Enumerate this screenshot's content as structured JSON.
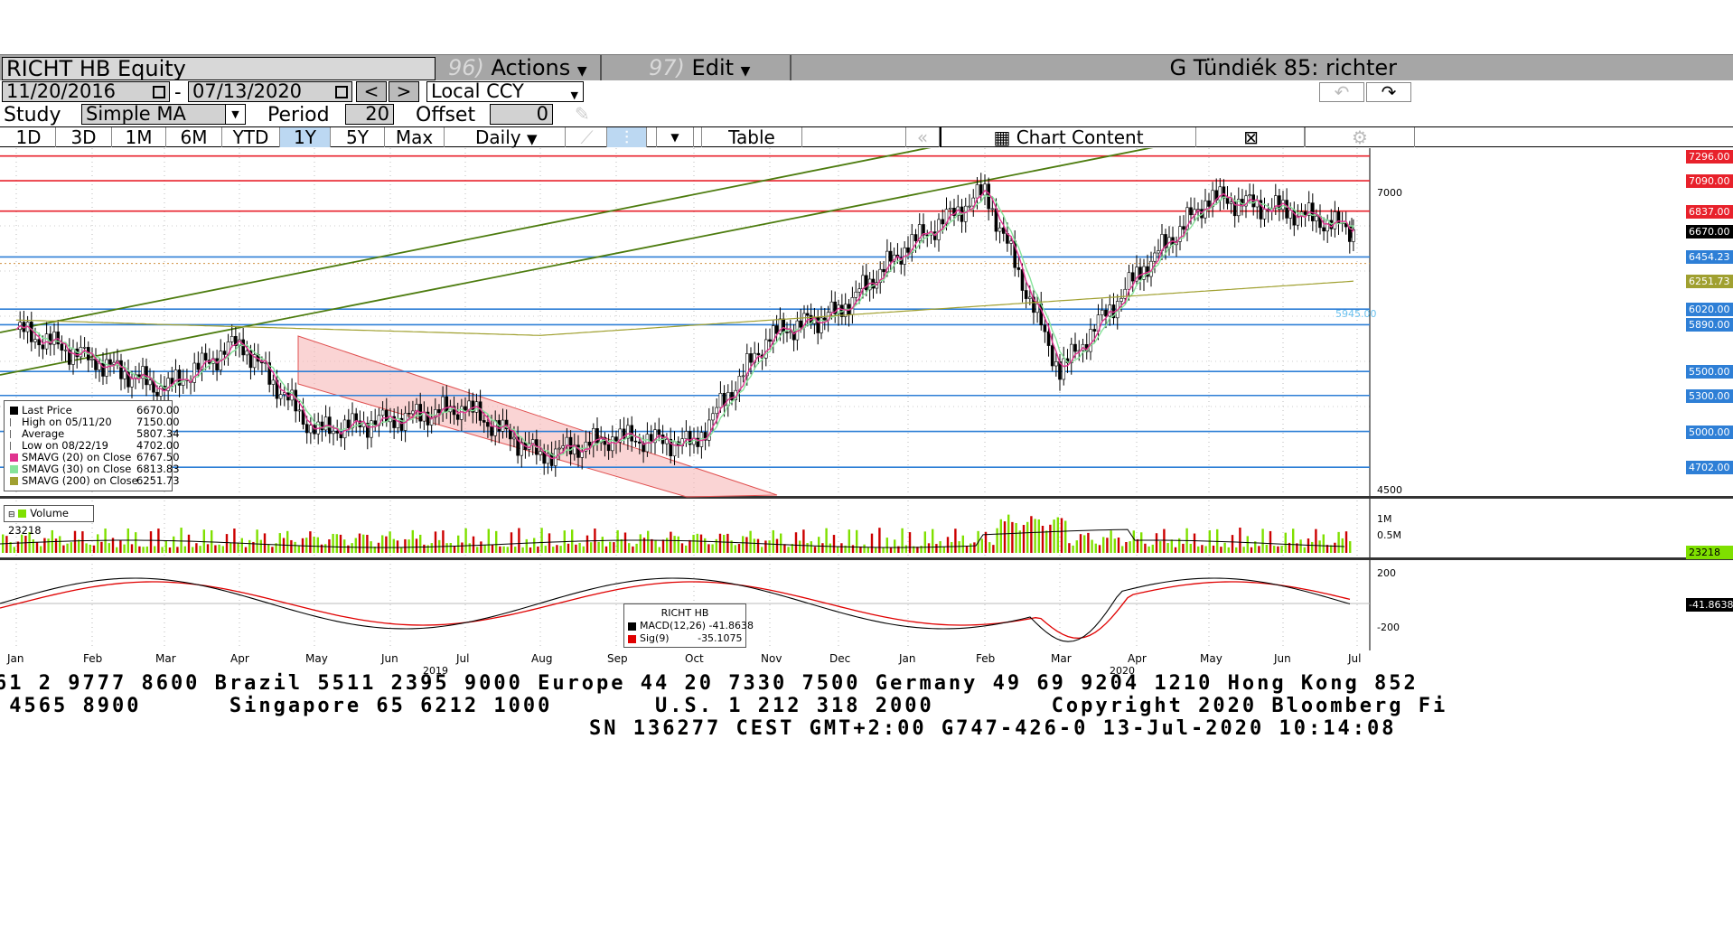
{
  "header": {
    "security": "RICHT HB Equity",
    "actions_num": "96)",
    "actions_label": "Actions",
    "edit_num": "97)",
    "edit_label": "Edit",
    "title": "G Tündiék 85: richter"
  },
  "range": {
    "start": "11/20/2016",
    "dash": "-",
    "end": "07/13/2020",
    "prev": "<",
    "next": ">",
    "currency": "Local CCY"
  },
  "study": {
    "label": "Study",
    "value": "Simple MA",
    "period_label": "Period",
    "period": "20",
    "offset_label": "Offset",
    "offset": "0"
  },
  "periods": [
    "1D",
    "3D",
    "1M",
    "6M",
    "YTD",
    "1Y",
    "5Y",
    "Max"
  ],
  "active_period": "1Y",
  "frequency": "Daily",
  "table_label": "Table",
  "chart_content_label": "Chart Content",
  "colors": {
    "toolbar_gray": "#a6a6a6",
    "resistance_red": "#e8212b",
    "support_blue": "#2e7fd6",
    "trend_green": "#4d7c0f",
    "channel_fill": "#f7b8b8",
    "sma20": "#e0338f",
    "sma30": "#86e39a",
    "sma200": "#a0a030",
    "volume_up": "#7fe000",
    "volume_down": "#cc0000",
    "macd": "#000000",
    "signal": "#e00000"
  },
  "price_tags": [
    {
      "value": "7296.00",
      "color": "#e8212b"
    },
    {
      "value": "7090.00",
      "color": "#e8212b"
    },
    {
      "value": "6837.00",
      "color": "#e8212b"
    },
    {
      "value": "6670.00",
      "color": "#000000"
    },
    {
      "value": "6454.23",
      "color": "#2e7fd6"
    },
    {
      "value": "6251.73",
      "color": "#a0a030"
    },
    {
      "value": "6020.00",
      "color": "#2e7fd6"
    },
    {
      "value": "5890.00",
      "color": "#2e7fd6"
    },
    {
      "value": "5500.00",
      "color": "#2e7fd6"
    },
    {
      "value": "5300.00",
      "color": "#2e7fd6"
    },
    {
      "value": "5000.00",
      "color": "#2e7fd6"
    },
    {
      "value": "4702.00",
      "color": "#2e7fd6"
    }
  ],
  "price_axis": [
    "7000",
    "4500"
  ],
  "inline_label": "5945.00",
  "legend": [
    {
      "label": "Last Price",
      "value": "6670.00",
      "marker": "#000000"
    },
    {
      "label": "High on 05/11/20",
      "value": "7150.00",
      "marker": "none"
    },
    {
      "label": "Average",
      "value": "5807.34",
      "marker": "none"
    },
    {
      "label": "Low on 08/22/19",
      "value": "4702.00",
      "marker": "none"
    },
    {
      "label": "SMAVG (20)  on Close",
      "value": "6767.50",
      "marker": "#e0338f"
    },
    {
      "label": "SMAVG (30)  on Close",
      "value": "6813.83",
      "marker": "#86e39a"
    },
    {
      "label": "SMAVG (200)  on Close",
      "value": "6251.73",
      "marker": "#a0a030"
    }
  ],
  "volume": {
    "label": "Volume 23218",
    "axis": [
      "1M",
      "0.5M"
    ],
    "tag": "23218"
  },
  "macd": {
    "title": "RICHT HB",
    "macd_label": "MACD(12,26)",
    "macd_value": "-41.8638",
    "sig_label": "Sig(9)",
    "sig_value": "-35.1075",
    "axis": [
      "200",
      "-200"
    ],
    "tag": "-41.8638"
  },
  "months": [
    "Jan",
    "Feb",
    "Mar",
    "Apr",
    "May",
    "Jun",
    "Jul",
    "Aug",
    "Sep",
    "Oct",
    "Nov",
    "Dec",
    "Jan",
    "Feb",
    "Mar",
    "Apr",
    "May",
    "Jun",
    "Jul"
  ],
  "years": [
    "2019",
    "2020"
  ],
  "footer": {
    "line1": "61 2 9777 8600 Brazil 5511 2395 9000 Europe 44 20 7330 7500 Germany 49 69 9204 1210 Hong Kong 852",
    "line2": " 4565 8900      Singapore 65 6212 1000       U.S. 1 212 318 2000        Copyright 2020 Bloomberg Fi",
    "line3": "SN 136277 CEST GMT+2:00 G747-426-0 13-Jul-2020 10:14:08"
  },
  "chart_data": {
    "type": "candlestick",
    "title": "RICHT HB Equity",
    "x_range": [
      "Jan 2019",
      "Jul 2020"
    ],
    "ylim": [
      4500,
      7300
    ],
    "last_price": 6670.0,
    "high": {
      "date": "05/11/20",
      "value": 7150.0
    },
    "low": {
      "date": "08/22/19",
      "value": 4702.0
    },
    "average": 5807.34,
    "sma": [
      {
        "name": "SMAVG (20)  on Close",
        "value": 6767.5
      },
      {
        "name": "SMAVG (30)  on Close",
        "value": 6813.83
      },
      {
        "name": "SMAVG (200)  on Close",
        "value": 6251.73
      }
    ],
    "horizontal_levels": [
      7296,
      7090,
      6837,
      6454.23,
      6020,
      5890,
      5500,
      5300,
      5000,
      4702
    ],
    "monthly_close_approx": {
      "x": [
        "Jan 2019",
        "Feb",
        "Mar",
        "Apr",
        "May",
        "Jun",
        "Jul",
        "Aug",
        "Sep",
        "Oct",
        "Nov",
        "Dec",
        "Jan 2020",
        "Feb",
        "Mar",
        "Apr",
        "May",
        "Jun",
        "Jul"
      ],
      "y": [
        5850,
        5600,
        5350,
        5750,
        5000,
        5100,
        5200,
        4800,
        4950,
        4900,
        5800,
        6000,
        6550,
        7000,
        5500,
        6300,
        6950,
        6850,
        6670
      ]
    },
    "volume_last": 23218,
    "macd": {
      "macd": -41.8638,
      "signal": -35.1075
    }
  }
}
